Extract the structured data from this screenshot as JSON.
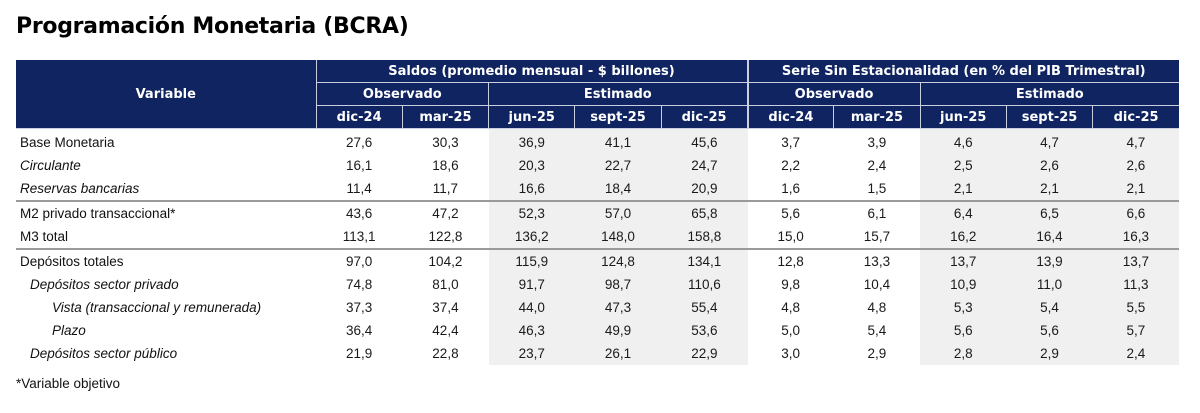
{
  "title": "Programación Monetaria (BCRA)",
  "table": {
    "variable_header": "Variable",
    "groups": [
      {
        "label": "Saldos (promedio mensual - $ billones)",
        "subgroups": [
          {
            "label": "Observado",
            "periods": [
              "dic-24",
              "mar-25"
            ]
          },
          {
            "label": "Estimado",
            "periods": [
              "jun-25",
              "sept-25",
              "dic-25"
            ]
          }
        ]
      },
      {
        "label": "Serie Sin Estacionalidad (en % del PIB Trimestral)",
        "subgroups": [
          {
            "label": "Observado",
            "periods": [
              "dic-24",
              "mar-25"
            ]
          },
          {
            "label": "Estimado",
            "periods": [
              "jun-25",
              "sept-25",
              "dic-25"
            ]
          }
        ]
      }
    ],
    "rows": [
      {
        "label": "Base Monetaria",
        "style": "normal",
        "saldos": [
          "27,6",
          "30,3",
          "36,9",
          "41,1",
          "45,6"
        ],
        "pib": [
          "3,7",
          "3,9",
          "4,6",
          "4,7",
          "4,7"
        ]
      },
      {
        "label": "Circulante",
        "style": "italic",
        "saldos": [
          "16,1",
          "18,6",
          "20,3",
          "22,7",
          "24,7"
        ],
        "pib": [
          "2,2",
          "2,4",
          "2,5",
          "2,6",
          "2,6"
        ]
      },
      {
        "label": "Reservas bancarias",
        "style": "italic",
        "saldos": [
          "11,4",
          "11,7",
          "16,6",
          "18,4",
          "20,9"
        ],
        "pib": [
          "1,6",
          "1,5",
          "2,1",
          "2,1",
          "2,1"
        ]
      },
      {
        "label": "M2 privado transaccional*",
        "style": "normal",
        "saldos": [
          "43,6",
          "47,2",
          "52,3",
          "57,0",
          "65,8"
        ],
        "pib": [
          "5,6",
          "6,1",
          "6,4",
          "6,5",
          "6,6"
        ]
      },
      {
        "label": "M3 total",
        "style": "normal",
        "saldos": [
          "113,1",
          "122,8",
          "136,2",
          "148,0",
          "158,8"
        ],
        "pib": [
          "15,0",
          "15,7",
          "16,2",
          "16,4",
          "16,3"
        ]
      },
      {
        "label": "Depósitos totales",
        "style": "normal",
        "saldos": [
          "97,0",
          "104,2",
          "115,9",
          "124,8",
          "134,1"
        ],
        "pib": [
          "12,8",
          "13,3",
          "13,7",
          "13,9",
          "13,7"
        ]
      },
      {
        "label": "Depósitos sector privado",
        "style": "italic indent1",
        "saldos": [
          "74,8",
          "81,0",
          "91,7",
          "98,7",
          "110,6"
        ],
        "pib": [
          "9,8",
          "10,4",
          "10,9",
          "11,0",
          "11,3"
        ]
      },
      {
        "label": "Vista (transaccional y remunerada)",
        "style": "italic indent2",
        "saldos": [
          "37,3",
          "37,4",
          "44,0",
          "47,3",
          "55,4"
        ],
        "pib": [
          "4,8",
          "4,8",
          "5,3",
          "5,4",
          "5,5"
        ]
      },
      {
        "label": "Plazo",
        "style": "italic indent2",
        "saldos": [
          "36,4",
          "42,4",
          "46,3",
          "49,9",
          "53,6"
        ],
        "pib": [
          "5,0",
          "5,4",
          "5,6",
          "5,6",
          "5,7"
        ]
      },
      {
        "label": "Depósitos sector público",
        "style": "italic indent1",
        "saldos": [
          "21,9",
          "22,8",
          "23,7",
          "26,1",
          "22,9"
        ],
        "pib": [
          "3,0",
          "2,9",
          "2,8",
          "2,9",
          "2,4"
        ]
      }
    ]
  },
  "footnote": "*Variable objetivo",
  "colors": {
    "header_bg": "#0f2460",
    "header_text": "#ffffff",
    "estimated_bg": "#f0f0f0",
    "separator": "#9a9a9a"
  }
}
